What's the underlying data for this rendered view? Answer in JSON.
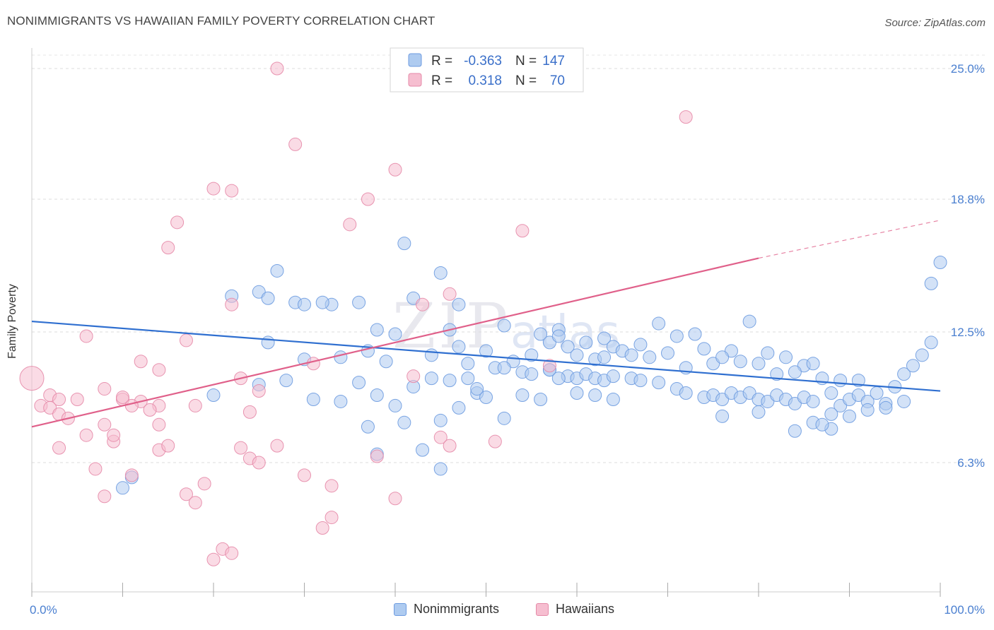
{
  "title": "NONIMMIGRANTS VS HAWAIIAN FAMILY POVERTY CORRELATION CHART",
  "source": "Source: ZipAtlas.com",
  "colors": {
    "blue": "#4a86d8",
    "blue_fill": "#aecbf0",
    "pink": "#e0608a",
    "pink_fill": "#f6bed0",
    "tick": "#4a7fd0"
  },
  "legend_stats": [
    {
      "r_label": "R =",
      "r_value": "-0.363",
      "n_label": "N =",
      "n_value": "147"
    },
    {
      "r_label": "R =",
      "r_value": "0.318",
      "n_label": "N =",
      "n_value": "70"
    }
  ],
  "chart_data": {
    "type": "scatter",
    "title": "NONIMMIGRANTS VS HAWAIIAN FAMILY POVERTY CORRELATION CHART",
    "xlabel": "",
    "ylabel": "Family Poverty",
    "xlim": [
      0,
      100
    ],
    "ylim": [
      0,
      26
    ],
    "x_tick_labels": [
      "0.0%",
      "100.0%"
    ],
    "y_ticks": [
      6.3,
      12.5,
      18.8,
      25.0
    ],
    "y_tick_labels": [
      "6.3%",
      "12.5%",
      "18.8%",
      "25.0%"
    ],
    "grid": true,
    "legend": "top-center and bottom",
    "series": [
      {
        "name": "Nonimmigrants",
        "trend": {
          "x": [
            0,
            100
          ],
          "y": [
            13.0,
            9.7
          ]
        },
        "points": [
          [
            22,
            14.2
          ],
          [
            25,
            14.4
          ],
          [
            26,
            14.1
          ],
          [
            27,
            15.4
          ],
          [
            29,
            13.9
          ],
          [
            30,
            13.8
          ],
          [
            33,
            13.8
          ],
          [
            36,
            13.9
          ],
          [
            41,
            16.7
          ],
          [
            45,
            15.3
          ],
          [
            47,
            13.8
          ],
          [
            32,
            13.9
          ],
          [
            38,
            12.6
          ],
          [
            40,
            12.4
          ],
          [
            42,
            14.1
          ],
          [
            46,
            12.6
          ],
          [
            52,
            12.8
          ],
          [
            56,
            12.4
          ],
          [
            57,
            12.0
          ],
          [
            58,
            12.6
          ],
          [
            61,
            12.0
          ],
          [
            63,
            12.2
          ],
          [
            67,
            11.9
          ],
          [
            69,
            12.9
          ],
          [
            71,
            12.3
          ],
          [
            73,
            12.4
          ],
          [
            74,
            11.7
          ],
          [
            77,
            11.6
          ],
          [
            79,
            13.0
          ],
          [
            81,
            11.5
          ],
          [
            83,
            11.3
          ],
          [
            85,
            10.9
          ],
          [
            86,
            11.0
          ],
          [
            26,
            12.0
          ],
          [
            30,
            11.2
          ],
          [
            34,
            11.3
          ],
          [
            37,
            11.6
          ],
          [
            39,
            11.1
          ],
          [
            44,
            11.4
          ],
          [
            47,
            11.8
          ],
          [
            48,
            11.0
          ],
          [
            50,
            11.6
          ],
          [
            53,
            11.1
          ],
          [
            54,
            10.6
          ],
          [
            55,
            11.4
          ],
          [
            57,
            10.7
          ],
          [
            58,
            12.3
          ],
          [
            59,
            11.8
          ],
          [
            60,
            11.4
          ],
          [
            62,
            11.2
          ],
          [
            63,
            11.3
          ],
          [
            64,
            11.8
          ],
          [
            65,
            11.6
          ],
          [
            66,
            11.4
          ],
          [
            68,
            11.3
          ],
          [
            70,
            11.5
          ],
          [
            72,
            10.8
          ],
          [
            75,
            11.0
          ],
          [
            76,
            11.3
          ],
          [
            78,
            11.1
          ],
          [
            80,
            11.0
          ],
          [
            82,
            10.5
          ],
          [
            84,
            10.6
          ],
          [
            87,
            10.3
          ],
          [
            89,
            10.2
          ],
          [
            91,
            10.2
          ],
          [
            10,
            5.1
          ],
          [
            11,
            5.6
          ],
          [
            20,
            9.5
          ],
          [
            25,
            10.0
          ],
          [
            28,
            10.2
          ],
          [
            31,
            9.3
          ],
          [
            34,
            9.2
          ],
          [
            36,
            10.1
          ],
          [
            38,
            9.5
          ],
          [
            40,
            9.0
          ],
          [
            42,
            9.9
          ],
          [
            44,
            10.3
          ],
          [
            46,
            10.2
          ],
          [
            48,
            10.3
          ],
          [
            49,
            9.6
          ],
          [
            51,
            10.8
          ],
          [
            52,
            10.8
          ],
          [
            55,
            10.5
          ],
          [
            57,
            10.7
          ],
          [
            59,
            10.4
          ],
          [
            60,
            10.3
          ],
          [
            61,
            10.5
          ],
          [
            62,
            10.3
          ],
          [
            63,
            10.2
          ],
          [
            64,
            10.4
          ],
          [
            66,
            10.3
          ],
          [
            67,
            10.2
          ],
          [
            69,
            10.1
          ],
          [
            71,
            9.8
          ],
          [
            72,
            9.6
          ],
          [
            74,
            9.4
          ],
          [
            75,
            9.5
          ],
          [
            76,
            9.3
          ],
          [
            77,
            9.6
          ],
          [
            78,
            9.4
          ],
          [
            79,
            9.6
          ],
          [
            80,
            9.3
          ],
          [
            81,
            9.2
          ],
          [
            82,
            9.5
          ],
          [
            83,
            9.3
          ],
          [
            84,
            9.1
          ],
          [
            85,
            9.4
          ],
          [
            86,
            9.2
          ],
          [
            88,
            9.6
          ],
          [
            89,
            9.0
          ],
          [
            90,
            9.3
          ],
          [
            91,
            9.5
          ],
          [
            92,
            9.2
          ],
          [
            93,
            9.6
          ],
          [
            94,
            9.1
          ],
          [
            95,
            9.9
          ],
          [
            96,
            10.5
          ],
          [
            97,
            10.9
          ],
          [
            98,
            11.4
          ],
          [
            99,
            12.0
          ],
          [
            99,
            14.8
          ],
          [
            100,
            15.8
          ],
          [
            50,
            9.4
          ],
          [
            52,
            8.4
          ],
          [
            54,
            9.5
          ],
          [
            56,
            9.3
          ],
          [
            58,
            10.3
          ],
          [
            45,
            8.3
          ],
          [
            60,
            9.6
          ],
          [
            62,
            9.5
          ],
          [
            64,
            9.3
          ],
          [
            37,
            8.0
          ],
          [
            43,
            6.9
          ],
          [
            47,
            8.9
          ],
          [
            49,
            9.8
          ],
          [
            38,
            6.7
          ],
          [
            41,
            8.2
          ],
          [
            45,
            6.0
          ],
          [
            76,
            8.5
          ],
          [
            80,
            8.7
          ],
          [
            84,
            7.8
          ],
          [
            86,
            8.2
          ],
          [
            88,
            8.6
          ],
          [
            90,
            8.5
          ],
          [
            92,
            8.8
          ],
          [
            94,
            8.9
          ],
          [
            96,
            9.2
          ],
          [
            88,
            7.9
          ],
          [
            87,
            8.1
          ]
        ]
      },
      {
        "name": "Hawaiians",
        "trend": {
          "x": [
            0,
            80
          ],
          "y": [
            8.0,
            16.0
          ],
          "dashed_to": [
            100,
            17.8
          ]
        },
        "points": [
          [
            27,
            25.0
          ],
          [
            72,
            22.7
          ],
          [
            29,
            21.4
          ],
          [
            40,
            20.2
          ],
          [
            20,
            19.3
          ],
          [
            22,
            19.2
          ],
          [
            37,
            18.8
          ],
          [
            16,
            17.7
          ],
          [
            35,
            17.6
          ],
          [
            54,
            17.3
          ],
          [
            15,
            16.5
          ],
          [
            22,
            13.8
          ],
          [
            43,
            13.8
          ],
          [
            46,
            14.3
          ],
          [
            6,
            12.3
          ],
          [
            17,
            12.1
          ],
          [
            12,
            11.1
          ],
          [
            14,
            10.7
          ],
          [
            23,
            10.3
          ],
          [
            31,
            11.0
          ],
          [
            42,
            10.4
          ],
          [
            57,
            10.9
          ],
          [
            0,
            10.3
          ],
          [
            2,
            9.5
          ],
          [
            3,
            9.3
          ],
          [
            5,
            9.3
          ],
          [
            8,
            9.8
          ],
          [
            10,
            9.3
          ],
          [
            12,
            9.2
          ],
          [
            14,
            9.0
          ],
          [
            18,
            9.0
          ],
          [
            25,
            9.7
          ],
          [
            1,
            9.0
          ],
          [
            2,
            8.9
          ],
          [
            3,
            8.6
          ],
          [
            4,
            8.4
          ],
          [
            6,
            7.6
          ],
          [
            8,
            8.1
          ],
          [
            9,
            7.3
          ],
          [
            10,
            9.4
          ],
          [
            11,
            9.0
          ],
          [
            13,
            8.8
          ],
          [
            14,
            8.1
          ],
          [
            24,
            8.7
          ],
          [
            3,
            7.0
          ],
          [
            7,
            6.0
          ],
          [
            8,
            4.7
          ],
          [
            9,
            7.6
          ],
          [
            11,
            5.7
          ],
          [
            14,
            6.9
          ],
          [
            15,
            7.1
          ],
          [
            17,
            4.8
          ],
          [
            18,
            4.4
          ],
          [
            19,
            5.3
          ],
          [
            21,
            2.2
          ],
          [
            23,
            7.0
          ],
          [
            24,
            6.5
          ],
          [
            25,
            6.3
          ],
          [
            27,
            7.1
          ],
          [
            30,
            5.7
          ],
          [
            32,
            3.2
          ],
          [
            33,
            3.7
          ],
          [
            33,
            5.2
          ],
          [
            40,
            4.6
          ],
          [
            45,
            7.5
          ],
          [
            46,
            7.1
          ],
          [
            51,
            7.3
          ],
          [
            20,
            1.7
          ],
          [
            22,
            2.0
          ],
          [
            38,
            6.6
          ]
        ]
      }
    ]
  }
}
